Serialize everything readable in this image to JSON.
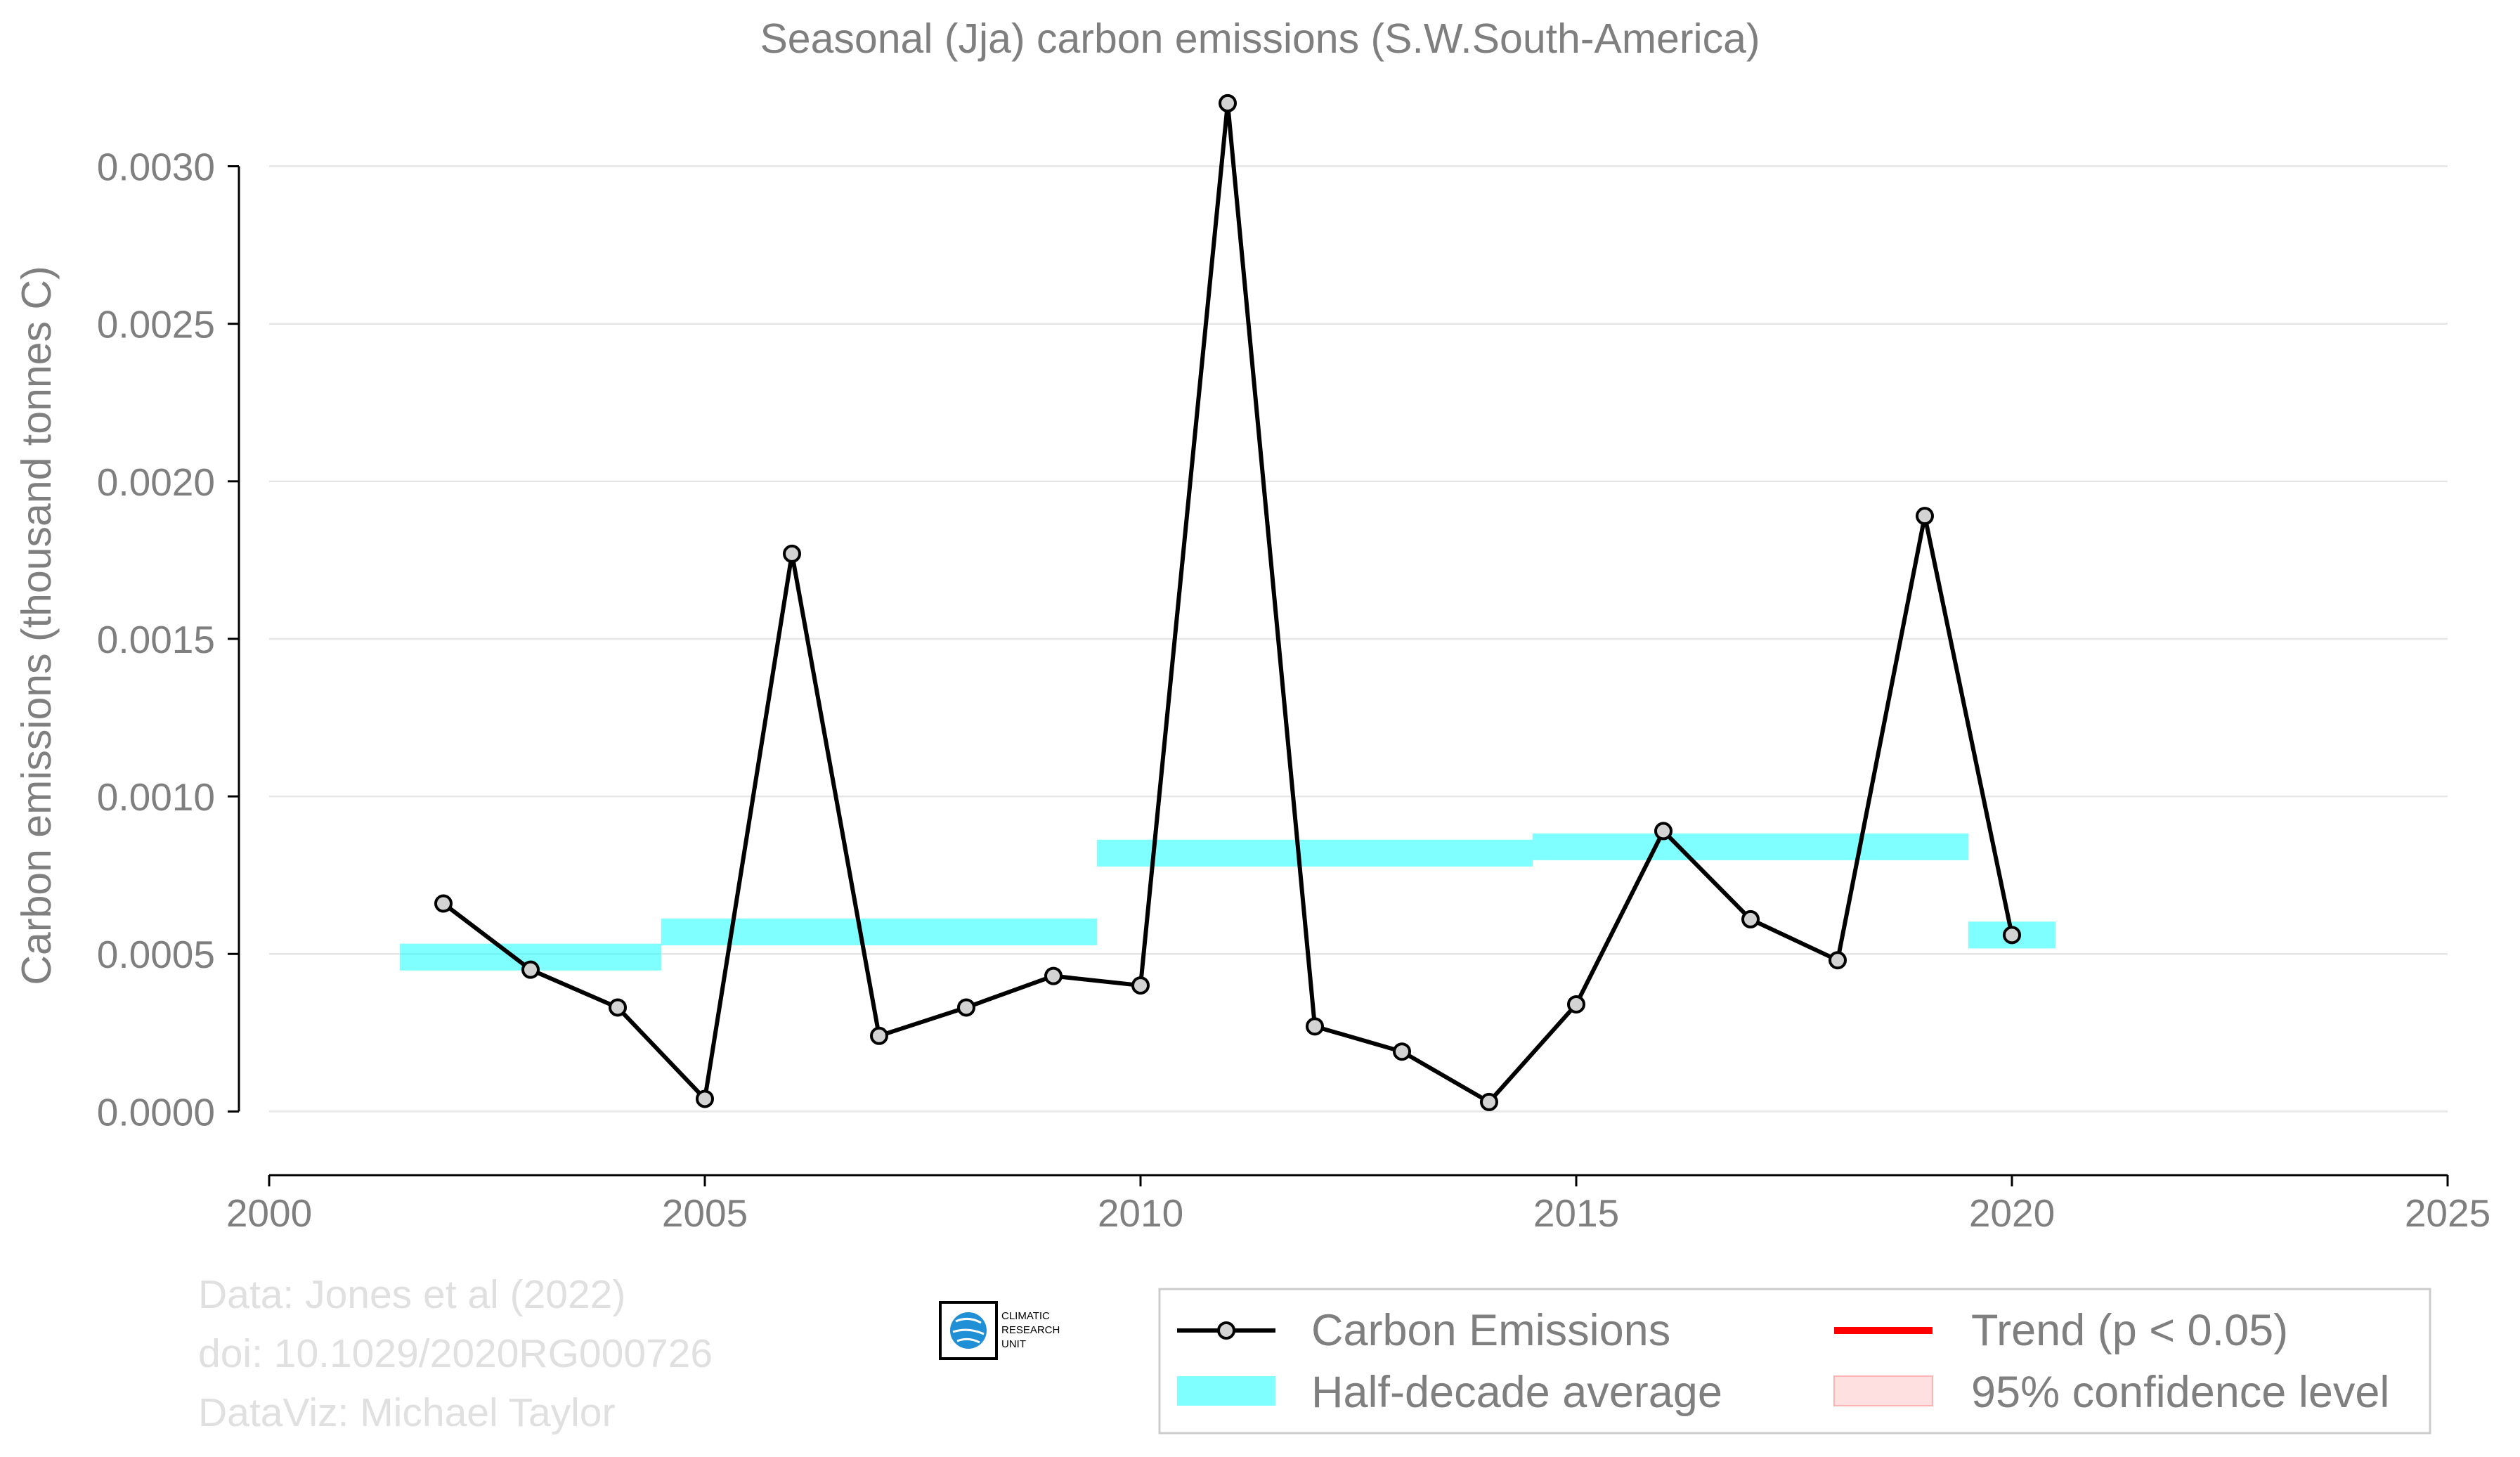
{
  "chart_data": {
    "type": "line",
    "title": "Seasonal (Jja) carbon emissions (S.W.South-America)",
    "ylabel": "Carbon emissions (thousand tonnes C)",
    "xlabel": "",
    "xlim": [
      2000,
      2025
    ],
    "ylim": [
      -0.00022,
      0.00326
    ],
    "xticks": [
      "2000",
      "2005",
      "2010",
      "2015",
      "2020",
      "2025"
    ],
    "xtick_values": [
      2000,
      2005,
      2010,
      2015,
      2020,
      2025
    ],
    "yticks": [
      "0.0000",
      "0.0005",
      "0.0010",
      "0.0015",
      "0.0020",
      "0.0025",
      "0.0030"
    ],
    "ytick_values": [
      0,
      0.0005,
      0.001,
      0.0015,
      0.002,
      0.0025,
      0.003
    ],
    "grid": true,
    "legend_position": "bottom-right, below plot",
    "series": [
      {
        "name": "Carbon Emissions",
        "color": "#000000",
        "x": [
          2002,
          2003,
          2004,
          2005,
          2006,
          2007,
          2008,
          2009,
          2010,
          2011,
          2012,
          2013,
          2014,
          2015,
          2016,
          2017,
          2018,
          2019,
          2020
        ],
        "y": [
          0.00066,
          0.00045,
          0.00033,
          4e-05,
          0.00177,
          0.00024,
          0.00033,
          0.00043,
          0.0004,
          0.0032,
          0.00027,
          0.00019,
          3e-05,
          0.00034,
          0.00089,
          0.00061,
          0.00048,
          0.00189,
          0.00056
        ]
      },
      {
        "name": "Half-decade average",
        "color": "#00ffff",
        "segments": [
          {
            "x0": 2001.5,
            "x1": 2004.5,
            "y": 0.00049
          },
          {
            "x0": 2004.5,
            "x1": 2009.5,
            "y": 0.00057
          },
          {
            "x0": 2009.5,
            "x1": 2014.5,
            "y": 0.00082
          },
          {
            "x0": 2014.5,
            "x1": 2019.5,
            "y": 0.00084
          },
          {
            "x0": 2019.5,
            "x1": 2020.5,
            "y": 0.00056
          }
        ]
      },
      {
        "name": "Trend (p < 0.05)",
        "color": "#ff0000"
      },
      {
        "name": "95% confidence level",
        "color": "#ffcccc"
      }
    ]
  },
  "credits": {
    "line1": "Data: Jones et al (2022)",
    "line2": "doi: 10.1029/2020RG000726",
    "line3": "DataViz: Michael Taylor"
  },
  "logo": {
    "line1": "CLIMATIC",
    "line2": "RESEARCH",
    "line3": "UNIT"
  }
}
